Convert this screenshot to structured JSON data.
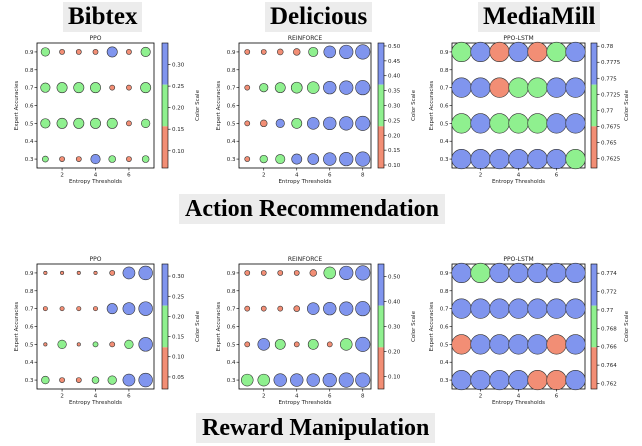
{
  "dataset_headers": [
    "Bibtex",
    "Delicious",
    "MediaMill"
  ],
  "section_labels": [
    "Action Recommendation",
    "Reward Manipulation"
  ],
  "colors": {
    "low": "#f28e75",
    "mid": "#8ff08f",
    "high": "#8095ee"
  },
  "chart_data": [
    {
      "type": "scatter",
      "title": "PPO",
      "xlabel": "Entropy Thresholds",
      "ylabel": "Expert Accuracies",
      "colorbar_label": "Color Scale",
      "xlim": [
        0.5,
        7.5
      ],
      "ylim": [
        0.25,
        0.95
      ],
      "xticks": [
        2,
        4,
        6
      ],
      "yticks": [
        0.3,
        0.4,
        0.5,
        0.6,
        0.7,
        0.8,
        0.9
      ],
      "cticks": [
        0.1,
        0.15,
        0.2,
        0.25,
        0.3
      ],
      "clim": [
        0.06,
        0.35
      ],
      "x": [
        1,
        2,
        3,
        4,
        5,
        6,
        7
      ],
      "y": [
        0.3,
        0.5,
        0.7,
        0.9
      ],
      "values": [
        [
          0.22,
          0.1,
          0.1,
          0.3,
          0.2,
          0.1,
          0.2
        ],
        [
          0.2,
          0.2,
          0.2,
          0.2,
          0.2,
          0.1,
          0.2
        ],
        [
          0.2,
          0.2,
          0.2,
          0.2,
          0.1,
          0.1,
          0.2
        ],
        [
          0.2,
          0.1,
          0.1,
          0.1,
          0.3,
          0.1,
          0.2
        ]
      ],
      "sizes": [
        [
          0.35,
          0.3,
          0.3,
          0.55,
          0.4,
          0.3,
          0.4
        ],
        [
          0.55,
          0.6,
          0.6,
          0.6,
          0.6,
          0.3,
          0.5
        ],
        [
          0.55,
          0.6,
          0.6,
          0.6,
          0.3,
          0.3,
          0.6
        ],
        [
          0.5,
          0.3,
          0.3,
          0.3,
          0.6,
          0.3,
          0.55
        ]
      ]
    },
    {
      "type": "scatter",
      "title": "REINFORCE",
      "xlabel": "Entropy Thresholds",
      "ylabel": "Expert Accuracies",
      "colorbar_label": "Color Scale",
      "xlim": [
        0.5,
        8.5
      ],
      "ylim": [
        0.25,
        0.95
      ],
      "xticks": [
        2,
        4,
        6,
        8
      ],
      "yticks": [
        0.3,
        0.4,
        0.5,
        0.6,
        0.7,
        0.8,
        0.9
      ],
      "cticks": [
        0.1,
        0.15,
        0.2,
        0.25,
        0.3,
        0.35,
        0.4,
        0.45,
        0.5
      ],
      "clim": [
        0.09,
        0.51
      ],
      "x": [
        1,
        2,
        3,
        4,
        5,
        6,
        7,
        8
      ],
      "y": [
        0.3,
        0.5,
        0.7,
        0.9
      ],
      "values": [
        [
          0.12,
          0.35,
          0.35,
          0.45,
          0.45,
          0.45,
          0.45,
          0.45
        ],
        [
          0.12,
          0.12,
          0.45,
          0.35,
          0.45,
          0.45,
          0.45,
          0.45
        ],
        [
          0.12,
          0.35,
          0.35,
          0.35,
          0.35,
          0.45,
          0.45,
          0.45
        ],
        [
          0.12,
          0.12,
          0.12,
          0.12,
          0.35,
          0.45,
          0.45,
          0.45
        ]
      ],
      "sizes": [
        [
          0.3,
          0.45,
          0.55,
          0.6,
          0.65,
          0.75,
          0.8,
          0.85
        ],
        [
          0.3,
          0.4,
          0.5,
          0.6,
          0.7,
          0.75,
          0.8,
          0.85
        ],
        [
          0.3,
          0.5,
          0.6,
          0.65,
          0.7,
          0.75,
          0.8,
          0.85
        ],
        [
          0.3,
          0.3,
          0.35,
          0.4,
          0.55,
          0.7,
          0.8,
          0.85
        ]
      ]
    },
    {
      "type": "scatter",
      "title": "PPO-LSTM",
      "xlabel": "Entropy Thresholds",
      "ylabel": "Expert Accuracies",
      "colorbar_label": "Color Scale",
      "xlim": [
        0.5,
        7.5
      ],
      "ylim": [
        0.25,
        0.95
      ],
      "xticks": [
        2,
        4,
        6
      ],
      "yticks": [
        0.3,
        0.4,
        0.5,
        0.6,
        0.7,
        0.8,
        0.9
      ],
      "cticks": [
        0.7625,
        0.765,
        0.7675,
        0.77,
        0.7725,
        0.775,
        0.7775,
        0.78
      ],
      "clim": [
        0.761,
        0.7805
      ],
      "x": [
        1,
        2,
        3,
        4,
        5,
        6,
        7
      ],
      "y": [
        0.3,
        0.5,
        0.7,
        0.9
      ],
      "values": [
        [
          0.776,
          0.776,
          0.776,
          0.776,
          0.776,
          0.776,
          0.771
        ],
        [
          0.769,
          0.776,
          0.769,
          0.769,
          0.769,
          0.776,
          0.776
        ],
        [
          0.776,
          0.776,
          0.763,
          0.769,
          0.769,
          0.776,
          0.776
        ],
        [
          0.769,
          0.776,
          0.763,
          0.776,
          0.763,
          0.769,
          0.776
        ]
      ],
      "sizes": [
        [
          1,
          1,
          1,
          1,
          1,
          1,
          1
        ],
        [
          1,
          1,
          1,
          1,
          1,
          1,
          1
        ],
        [
          1,
          1,
          1,
          1,
          1,
          1,
          1
        ],
        [
          1,
          1,
          1,
          1,
          1,
          1,
          1
        ]
      ]
    },
    {
      "type": "scatter",
      "title": "PPO",
      "xlabel": "Entropy Thresholds",
      "ylabel": "Expert Accuracies",
      "colorbar_label": "Color Scale",
      "xlim": [
        0.5,
        7.5
      ],
      "ylim": [
        0.25,
        0.95
      ],
      "xticks": [
        2,
        4,
        6
      ],
      "yticks": [
        0.3,
        0.4,
        0.5,
        0.6,
        0.7,
        0.8,
        0.9
      ],
      "cticks": [
        0.05,
        0.1,
        0.15,
        0.2,
        0.25,
        0.3
      ],
      "clim": [
        0.02,
        0.33
      ],
      "x": [
        1,
        2,
        3,
        4,
        5,
        6,
        7
      ],
      "y": [
        0.3,
        0.5,
        0.7,
        0.9
      ],
      "values": [
        [
          0.18,
          0.08,
          0.08,
          0.18,
          0.18,
          0.3,
          0.3
        ],
        [
          0.08,
          0.18,
          0.08,
          0.18,
          0.08,
          0.18,
          0.3
        ],
        [
          0.08,
          0.08,
          0.08,
          0.08,
          0.3,
          0.3,
          0.3
        ],
        [
          0.08,
          0.08,
          0.08,
          0.08,
          0.08,
          0.3,
          0.3
        ]
      ],
      "sizes": [
        [
          0.45,
          0.3,
          0.3,
          0.4,
          0.5,
          0.7,
          0.8
        ],
        [
          0.2,
          0.5,
          0.2,
          0.3,
          0.3,
          0.5,
          0.8
        ],
        [
          0.25,
          0.25,
          0.25,
          0.25,
          0.6,
          0.7,
          0.8
        ],
        [
          0.2,
          0.2,
          0.2,
          0.2,
          0.3,
          0.7,
          0.8
        ]
      ]
    },
    {
      "type": "scatter",
      "title": "REINFORCE",
      "xlabel": "Entropy Thresholds",
      "ylabel": "Expert Accuracies",
      "colorbar_label": "Color Scale",
      "xlim": [
        0.5,
        8.5
      ],
      "ylim": [
        0.25,
        0.95
      ],
      "xticks": [
        2,
        4,
        6,
        8
      ],
      "yticks": [
        0.3,
        0.4,
        0.5,
        0.6,
        0.7,
        0.8,
        0.9
      ],
      "cticks": [
        0.1,
        0.2,
        0.3,
        0.4,
        0.5
      ],
      "clim": [
        0.05,
        0.55
      ],
      "x": [
        1,
        2,
        3,
        4,
        5,
        6,
        7,
        8
      ],
      "y": [
        0.3,
        0.5,
        0.7,
        0.9
      ],
      "values": [
        [
          0.25,
          0.25,
          0.45,
          0.45,
          0.45,
          0.45,
          0.45,
          0.45
        ],
        [
          0.12,
          0.45,
          0.25,
          0.12,
          0.25,
          0.12,
          0.25,
          0.45
        ],
        [
          0.12,
          0.12,
          0.12,
          0.12,
          0.45,
          0.45,
          0.45,
          0.45
        ],
        [
          0.12,
          0.12,
          0.12,
          0.12,
          0.12,
          0.25,
          0.45,
          0.45
        ]
      ],
      "sizes": [
        [
          0.7,
          0.7,
          0.75,
          0.75,
          0.75,
          0.8,
          0.85,
          0.85
        ],
        [
          0.3,
          0.7,
          0.6,
          0.3,
          0.6,
          0.3,
          0.7,
          0.85
        ],
        [
          0.3,
          0.3,
          0.3,
          0.35,
          0.7,
          0.75,
          0.8,
          0.85
        ],
        [
          0.3,
          0.3,
          0.3,
          0.3,
          0.4,
          0.7,
          0.8,
          0.85
        ]
      ]
    },
    {
      "type": "scatter",
      "title": "PPO-LSTM",
      "xlabel": "Entropy Thresholds",
      "ylabel": "Expert Accuracies",
      "colorbar_label": "Color Scale",
      "xlim": [
        0.5,
        7.5
      ],
      "ylim": [
        0.25,
        0.95
      ],
      "xticks": [
        2,
        4,
        6
      ],
      "yticks": [
        0.3,
        0.4,
        0.5,
        0.6,
        0.7,
        0.8,
        0.9
      ],
      "cticks": [
        0.762,
        0.764,
        0.766,
        0.768,
        0.77,
        0.772,
        0.774
      ],
      "clim": [
        0.7614,
        0.775
      ],
      "x": [
        1,
        2,
        3,
        4,
        5,
        6,
        7
      ],
      "y": [
        0.3,
        0.5,
        0.7,
        0.9
      ],
      "values": [
        [
          0.773,
          0.773,
          0.773,
          0.773,
          0.764,
          0.764,
          0.773
        ],
        [
          0.764,
          0.773,
          0.773,
          0.773,
          0.773,
          0.764,
          0.773
        ],
        [
          0.773,
          0.773,
          0.773,
          0.773,
          0.773,
          0.773,
          0.773
        ],
        [
          0.773,
          0.769,
          0.773,
          0.773,
          0.773,
          0.773,
          0.773
        ]
      ],
      "sizes": [
        [
          1,
          1,
          1,
          1,
          1,
          1,
          1
        ],
        [
          1,
          1,
          1,
          1,
          1,
          1,
          1
        ],
        [
          1,
          1,
          1,
          1,
          1,
          1,
          1
        ],
        [
          1,
          1,
          1,
          1,
          1,
          1,
          1
        ]
      ]
    }
  ]
}
